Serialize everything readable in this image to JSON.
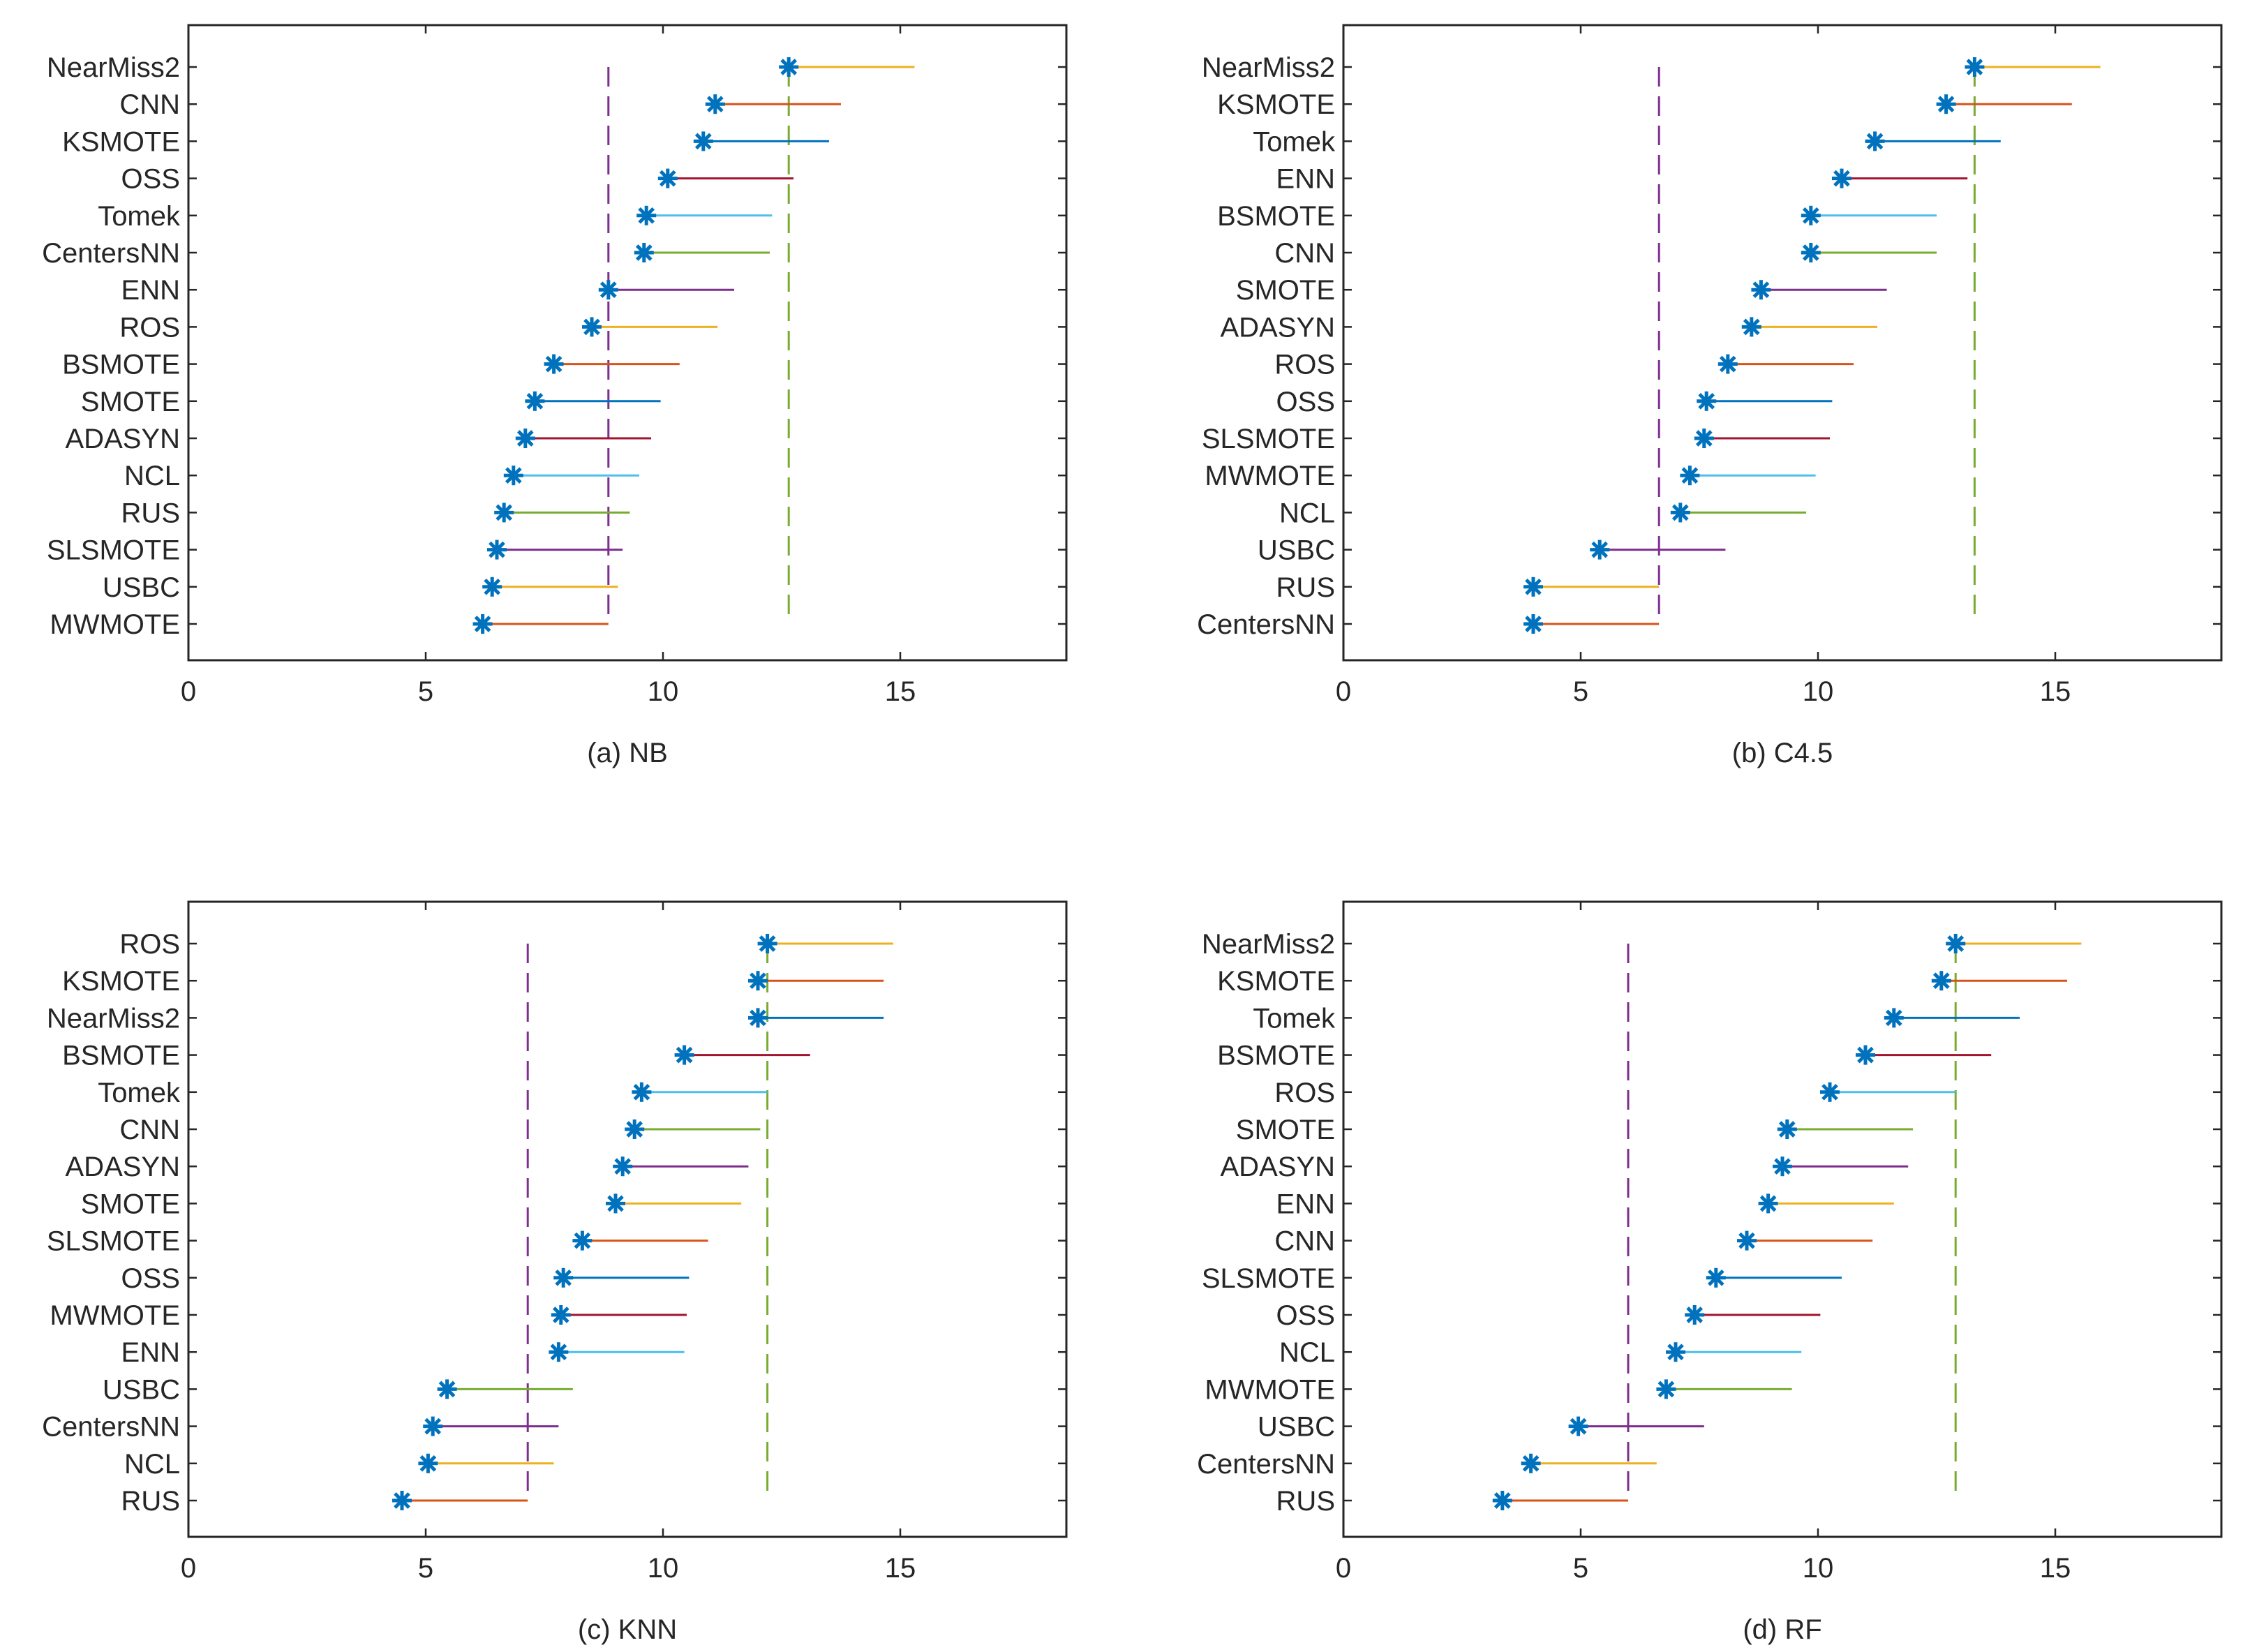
{
  "chart_data": [
    {
      "type": "scatter",
      "panel": "a",
      "title": "(a) NB",
      "xlim": [
        0,
        18.5
      ],
      "xticks": [
        "0",
        "5",
        "10",
        "15"
      ],
      "xtick_values": [
        0,
        5,
        10,
        15
      ],
      "critical_distance": 2.65,
      "categories": [
        "NearMiss2",
        "CNN",
        "KSMOTE",
        "OSS",
        "Tomek",
        "CentersNN",
        "ENN",
        "ROS",
        "BSMOTE",
        "SMOTE",
        "ADASYN",
        "NCL",
        "RUS",
        "SLSMOTE",
        "USBC",
        "MWMOTE"
      ],
      "values": [
        12.65,
        11.1,
        10.85,
        10.1,
        9.65,
        9.6,
        8.85,
        8.5,
        7.7,
        7.3,
        7.1,
        6.85,
        6.65,
        6.5,
        6.4,
        6.2
      ],
      "colors": [
        "#EDB120",
        "#D95319",
        "#0072BD",
        "#A2142F",
        "#4DBEEE",
        "#77AC30",
        "#7E2F8E",
        "#EDB120",
        "#D95319",
        "#0072BD",
        "#A2142F",
        "#4DBEEE",
        "#77AC30",
        "#7E2F8E",
        "#EDB120",
        "#D95319"
      ]
    },
    {
      "type": "scatter",
      "panel": "b",
      "title": "(b) C4.5",
      "xlim": [
        0,
        18.5
      ],
      "xticks": [
        "0",
        "5",
        "10",
        "15"
      ],
      "xtick_values": [
        0,
        5,
        10,
        15
      ],
      "critical_distance": 2.65,
      "categories": [
        "NearMiss2",
        "KSMOTE",
        "Tomek",
        "ENN",
        "BSMOTE",
        "CNN",
        "SMOTE",
        "ADASYN",
        "ROS",
        "OSS",
        "SLSMOTE",
        "MWMOTE",
        "NCL",
        "USBC",
        "RUS",
        "CentersNN"
      ],
      "values": [
        13.3,
        12.7,
        11.2,
        10.5,
        9.85,
        9.85,
        8.8,
        8.6,
        8.1,
        7.65,
        7.6,
        7.3,
        7.1,
        5.4,
        4.0,
        4.0
      ],
      "colors": [
        "#EDB120",
        "#D95319",
        "#0072BD",
        "#A2142F",
        "#4DBEEE",
        "#77AC30",
        "#7E2F8E",
        "#EDB120",
        "#D95319",
        "#0072BD",
        "#A2142F",
        "#4DBEEE",
        "#77AC30",
        "#7E2F8E",
        "#EDB120",
        "#D95319"
      ]
    },
    {
      "type": "scatter",
      "panel": "c",
      "title": "(c) KNN",
      "xlim": [
        0,
        18.5
      ],
      "xticks": [
        "0",
        "5",
        "10",
        "15"
      ],
      "xtick_values": [
        0,
        5,
        10,
        15
      ],
      "critical_distance": 2.65,
      "categories": [
        "ROS",
        "KSMOTE",
        "NearMiss2",
        "BSMOTE",
        "Tomek",
        "CNN",
        "ADASYN",
        "SMOTE",
        "SLSMOTE",
        "OSS",
        "MWMOTE",
        "ENN",
        "USBC",
        "CentersNN",
        "NCL",
        "RUS"
      ],
      "values": [
        12.2,
        12.0,
        12.0,
        10.45,
        9.55,
        9.4,
        9.15,
        9.0,
        8.3,
        7.9,
        7.85,
        7.8,
        5.45,
        5.15,
        5.05,
        4.5
      ],
      "colors": [
        "#EDB120",
        "#D95319",
        "#0072BD",
        "#A2142F",
        "#4DBEEE",
        "#77AC30",
        "#7E2F8E",
        "#EDB120",
        "#D95319",
        "#0072BD",
        "#A2142F",
        "#4DBEEE",
        "#77AC30",
        "#7E2F8E",
        "#EDB120",
        "#D95319"
      ]
    },
    {
      "type": "scatter",
      "panel": "d",
      "title": "(d) RF",
      "xlim": [
        0,
        18.5
      ],
      "xticks": [
        "0",
        "5",
        "10",
        "15"
      ],
      "xtick_values": [
        0,
        5,
        10,
        15
      ],
      "critical_distance": 2.65,
      "categories": [
        "NearMiss2",
        "KSMOTE",
        "Tomek",
        "BSMOTE",
        "ROS",
        "SMOTE",
        "ADASYN",
        "ENN",
        "CNN",
        "SLSMOTE",
        "OSS",
        "NCL",
        "MWMOTE",
        "USBC",
        "CentersNN",
        "RUS"
      ],
      "values": [
        12.9,
        12.6,
        11.6,
        11.0,
        10.25,
        9.35,
        9.25,
        8.95,
        8.5,
        7.85,
        7.4,
        7.0,
        6.8,
        4.95,
        3.95,
        3.35
      ],
      "colors": [
        "#EDB120",
        "#D95319",
        "#0072BD",
        "#A2142F",
        "#4DBEEE",
        "#77AC30",
        "#7E2F8E",
        "#EDB120",
        "#D95319",
        "#0072BD",
        "#A2142F",
        "#4DBEEE",
        "#77AC30",
        "#7E2F8E",
        "#EDB120",
        "#D95319"
      ]
    }
  ],
  "style": {
    "axis_color": "#262626",
    "marker_color": "#0072BD",
    "upper_line_color": "#77AC30",
    "lower_line_color": "#7E2F8E"
  }
}
